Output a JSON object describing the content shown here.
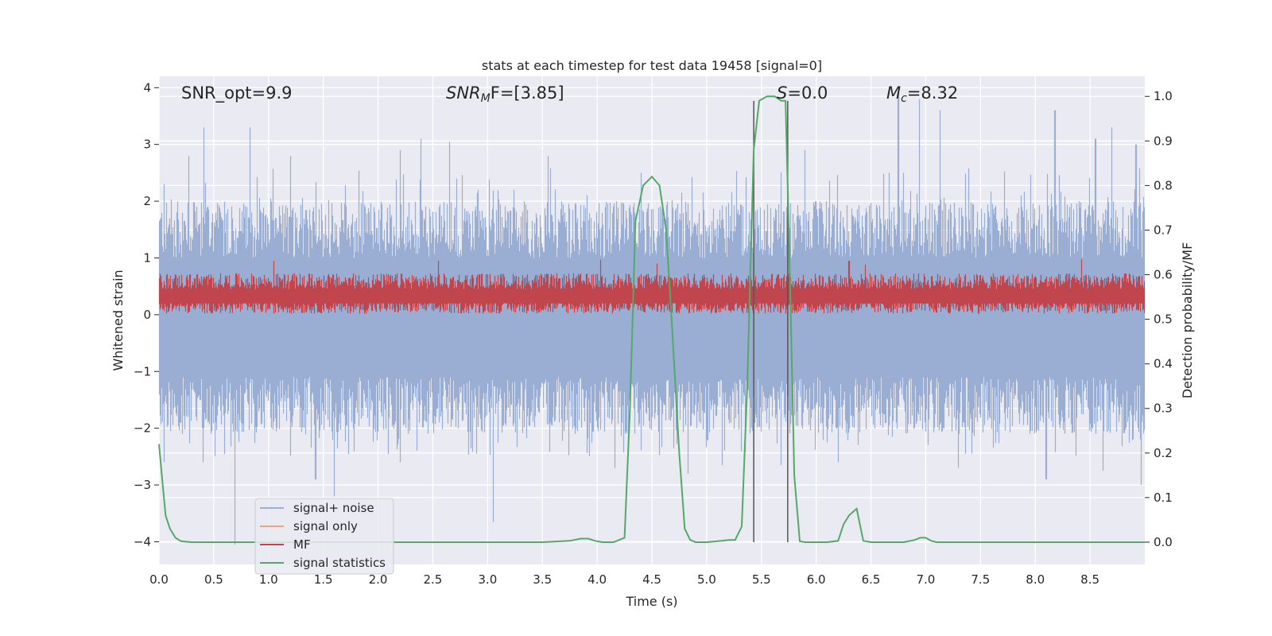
{
  "chart_data": {
    "type": "line",
    "title": "stats at each timestep for test data 19458 [signal=0]",
    "xlabel": "Time (s)",
    "ylabel_left": "Whitened strain",
    "ylabel_right": "Detection probability/MF",
    "xlim": [
      0.0,
      9.0
    ],
    "ylim_left": [
      -4.4,
      4.2
    ],
    "ylim_right": [
      -0.05,
      1.045
    ],
    "x_ticks": [
      "0.0",
      "0.5",
      "1.0",
      "1.5",
      "2.0",
      "2.5",
      "3.0",
      "3.5",
      "4.0",
      "4.5",
      "5.0",
      "5.5",
      "6.0",
      "6.5",
      "7.0",
      "7.5",
      "8.0",
      "8.5"
    ],
    "x_tick_values": [
      0.0,
      0.5,
      1.0,
      1.5,
      2.0,
      2.5,
      3.0,
      3.5,
      4.0,
      4.5,
      5.0,
      5.5,
      6.0,
      6.5,
      7.0,
      7.5,
      8.0,
      8.5
    ],
    "y_ticks_left": [
      "−4",
      "−3",
      "−2",
      "−1",
      "0",
      "1",
      "2",
      "3",
      "4"
    ],
    "y_tick_values_left": [
      -4,
      -3,
      -2,
      -1,
      0,
      1,
      2,
      3,
      4
    ],
    "y_ticks_right": [
      "0.0",
      "0.1",
      "0.2",
      "0.3",
      "0.4",
      "0.5",
      "0.6",
      "0.7",
      "0.8",
      "0.9",
      "1.0"
    ],
    "y_tick_values_right": [
      0.0,
      0.1,
      0.2,
      0.3,
      0.4,
      0.5,
      0.6,
      0.7,
      0.8,
      0.9,
      1.0
    ],
    "grid": true,
    "annotations": {
      "snr_opt": "SNR_opt=9.9",
      "snr_mf_main": "SNR",
      "snr_mf_sub": "M",
      "snr_mf_rest": "F=[3.85]",
      "s_main": "S",
      "s_rest": "=0.0",
      "mc_main": "M",
      "mc_sub": "c",
      "mc_rest": "=8.32"
    },
    "vertical_lines_x": [
      5.43,
      5.74
    ],
    "series": [
      {
        "name": "signal+ noise",
        "color": "#9aaed3",
        "axis": "left",
        "envelope": {
          "core_band": [
            -0.9,
            0.7
          ],
          "typical_band": [
            -1.6,
            1.5
          ],
          "upper_spikes": [
            [
              0.05,
              2.3
            ],
            [
              0.27,
              2.8
            ],
            [
              0.41,
              3.3
            ],
            [
              0.83,
              3.3
            ],
            [
              1.2,
              2.8
            ],
            [
              2.2,
              2.9
            ],
            [
              2.39,
              3.1
            ],
            [
              2.65,
              3.05
            ],
            [
              3.55,
              2.8
            ],
            [
              4.4,
              2.5
            ],
            [
              5.9,
              2.9
            ],
            [
              6.75,
              3.9
            ],
            [
              6.94,
              3.8
            ],
            [
              7.13,
              3.6
            ],
            [
              8.18,
              3.6
            ],
            [
              8.55,
              3.1
            ],
            [
              8.7,
              3.3
            ],
            [
              8.92,
              3.0
            ]
          ],
          "lower_spikes": [
            [
              0.05,
              -2.6
            ],
            [
              0.4,
              -2.6
            ],
            [
              0.69,
              -4.05
            ],
            [
              1.43,
              -2.9
            ],
            [
              1.6,
              -3.2
            ],
            [
              2.2,
              -2.6
            ],
            [
              3.05,
              -3.65
            ],
            [
              4.16,
              -2.7
            ],
            [
              4.83,
              -2.8
            ],
            [
              5.14,
              -2.65
            ],
            [
              5.68,
              -2.65
            ],
            [
              6.2,
              -2.6
            ],
            [
              7.3,
              -2.7
            ],
            [
              8.1,
              -2.9
            ],
            [
              8.62,
              -2.75
            ],
            [
              8.97,
              -3.0
            ]
          ]
        }
      },
      {
        "name": "signal only",
        "color": "#e8a584",
        "axis": "left",
        "values": []
      },
      {
        "name": "MF",
        "color": "#c0454c",
        "axis": "left",
        "band": [
          0.02,
          0.7
        ],
        "upper_spikes": [
          [
            1.05,
            0.95
          ],
          [
            2.55,
            0.95
          ],
          [
            4.03,
            0.97
          ],
          [
            4.55,
            0.9
          ],
          [
            6.3,
            0.95
          ],
          [
            6.45,
            0.88
          ],
          [
            8.42,
            0.98
          ]
        ]
      },
      {
        "name": "signal statistics",
        "color": "#55a868",
        "axis": "right",
        "x": [
          0.0,
          0.03,
          0.06,
          0.1,
          0.15,
          0.2,
          0.3,
          0.5,
          1.0,
          2.0,
          3.0,
          3.5,
          3.75,
          3.85,
          3.92,
          3.98,
          4.05,
          4.15,
          4.25,
          4.3,
          4.35,
          4.42,
          4.5,
          4.57,
          4.63,
          4.68,
          4.75,
          4.8,
          4.85,
          4.9,
          5.0,
          5.1,
          5.2,
          5.26,
          5.32,
          5.37,
          5.43,
          5.48,
          5.55,
          5.62,
          5.68,
          5.72,
          5.76,
          5.8,
          5.85,
          5.9,
          6.0,
          6.1,
          6.2,
          6.25,
          6.3,
          6.37,
          6.43,
          6.5,
          6.6,
          6.8,
          6.9,
          6.95,
          7.0,
          7.05,
          7.1,
          7.2,
          8.0,
          9.0
        ],
        "values": [
          0.22,
          0.14,
          0.06,
          0.03,
          0.01,
          0.002,
          0.0,
          0.0,
          0.0,
          0.0,
          0.0,
          0.0,
          0.003,
          0.008,
          0.008,
          0.003,
          0.0,
          0.0,
          0.01,
          0.3,
          0.72,
          0.8,
          0.82,
          0.8,
          0.7,
          0.5,
          0.2,
          0.03,
          0.005,
          0.0,
          0.0,
          0.002,
          0.005,
          0.005,
          0.035,
          0.35,
          0.88,
          0.99,
          1.0,
          1.0,
          0.99,
          0.99,
          0.6,
          0.15,
          0.002,
          0.0,
          0.0,
          0.0,
          0.003,
          0.04,
          0.06,
          0.075,
          0.003,
          0.0,
          0.0,
          0.0,
          0.005,
          0.01,
          0.01,
          0.003,
          0.0,
          0.0,
          0.0,
          0.0
        ]
      }
    ],
    "legend": {
      "position": "lower-left",
      "entries": [
        "signal+ noise",
        "signal only",
        "MF",
        "signal statistics"
      ]
    }
  }
}
